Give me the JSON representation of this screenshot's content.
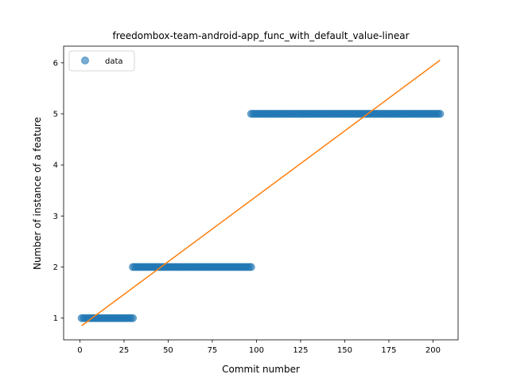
{
  "chart_data": {
    "type": "scatter",
    "title": "freedombox-team-android-app_func_with_default_value-linear",
    "xlabel": "Commit number",
    "ylabel": "Number of instance of a feature",
    "xlim": [
      -9.2,
      214.2
    ],
    "ylim": [
      0.575,
      6.325
    ],
    "xticks": [
      0,
      25,
      50,
      75,
      100,
      125,
      150,
      175,
      200
    ],
    "yticks": [
      1,
      2,
      3,
      4,
      5,
      6
    ],
    "grid": false,
    "legend_position": "upper-left",
    "legend": [
      "data"
    ],
    "colors": {
      "data": "#1f77b4",
      "fit": "#ff7f0e"
    },
    "data_segments": [
      {
        "x_start": 1,
        "x_end": 30,
        "y": 1
      },
      {
        "x_start": 30,
        "x_end": 97,
        "y": 2
      },
      {
        "x_start": 97,
        "x_end": 204,
        "y": 5
      }
    ],
    "fit_line": {
      "x": [
        1,
        204
      ],
      "y": [
        0.85,
        6.05
      ]
    }
  }
}
